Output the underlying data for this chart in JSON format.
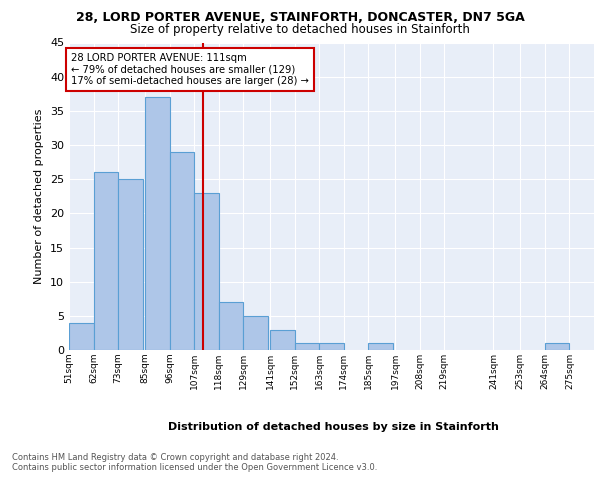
{
  "title1": "28, LORD PORTER AVENUE, STAINFORTH, DONCASTER, DN7 5GA",
  "title2": "Size of property relative to detached houses in Stainforth",
  "xlabel": "Distribution of detached houses by size in Stainforth",
  "ylabel": "Number of detached properties",
  "footnote": "Contains HM Land Registry data © Crown copyright and database right 2024.\nContains public sector information licensed under the Open Government Licence v3.0.",
  "annotation_line1": "28 LORD PORTER AVENUE: 111sqm",
  "annotation_line2": "← 79% of detached houses are smaller (129)",
  "annotation_line3": "17% of semi-detached houses are larger (28) →",
  "bar_left_edges": [
    51,
    62,
    73,
    85,
    96,
    107,
    118,
    129,
    141,
    152,
    163,
    174,
    185,
    197,
    208,
    219,
    241,
    264
  ],
  "bar_heights": [
    4,
    26,
    25,
    37,
    29,
    23,
    7,
    5,
    3,
    1,
    1,
    0,
    1,
    0,
    0,
    0,
    0,
    1
  ],
  "bin_width": 11,
  "tick_labels": [
    "51sqm",
    "62sqm",
    "73sqm",
    "85sqm",
    "96sqm",
    "107sqm",
    "118sqm",
    "129sqm",
    "141sqm",
    "152sqm",
    "163sqm",
    "174sqm",
    "185sqm",
    "197sqm",
    "208sqm",
    "219sqm",
    "241sqm",
    "253sqm",
    "264sqm",
    "275sqm"
  ],
  "tick_positions": [
    51,
    62,
    73,
    85,
    96,
    107,
    118,
    129,
    141,
    152,
    163,
    174,
    185,
    197,
    208,
    219,
    241,
    253,
    264,
    275
  ],
  "property_size": 111,
  "bar_color": "#aec6e8",
  "bar_edge_color": "#5a9fd4",
  "vline_color": "#cc0000",
  "background_color": "#e8eef8",
  "annotation_box_color": "#ffffff",
  "annotation_box_edge": "#cc0000",
  "ylim": [
    0,
    45
  ],
  "yticks": [
    0,
    5,
    10,
    15,
    20,
    25,
    30,
    35,
    40,
    45
  ]
}
